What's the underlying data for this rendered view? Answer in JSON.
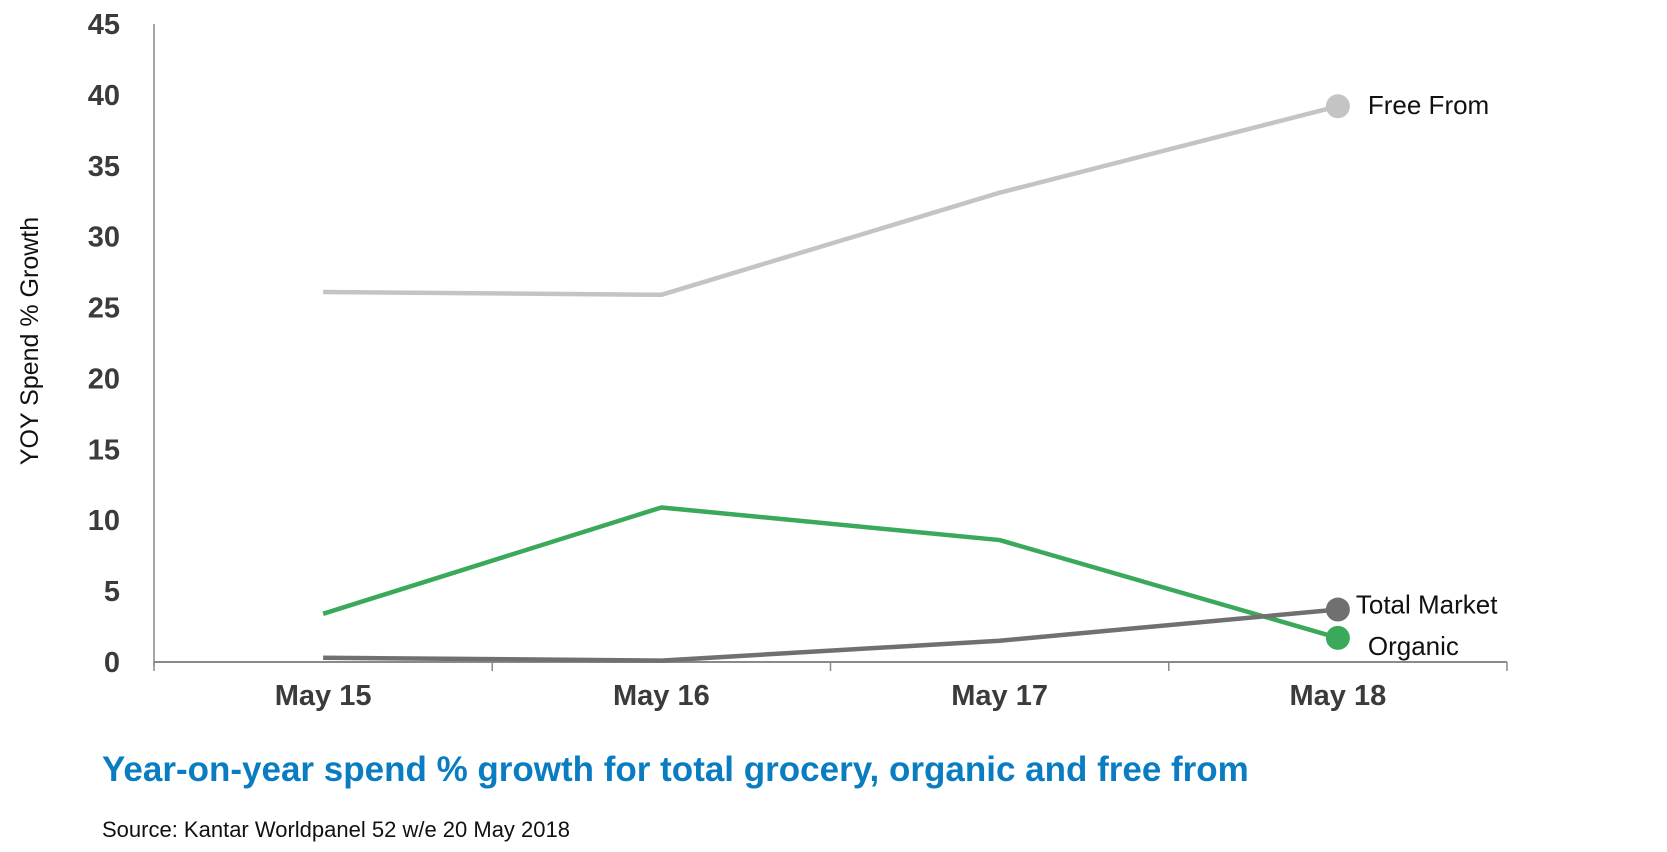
{
  "chart_data": {
    "type": "line",
    "title": "Year-on-year spend % growth for total grocery, organic and free from",
    "source": "Source: Kantar Worldpanel 52 w/e 20 May 2018",
    "xlabel": "",
    "ylabel": "YOY Spend % Growth",
    "categories": [
      "May 15",
      "May 16",
      "May 17",
      "May 18"
    ],
    "ylim": [
      0,
      45
    ],
    "yticks": [
      0,
      5,
      10,
      15,
      20,
      25,
      30,
      35,
      40,
      45
    ],
    "grid": false,
    "legend": "end-of-line labels",
    "series": [
      {
        "name": "Free From",
        "color": "#c4c4c4",
        "values": [
          26.1,
          25.9,
          33.1,
          39.2
        ]
      },
      {
        "name": "Organic",
        "color": "#3aa95a",
        "values": [
          3.4,
          10.9,
          8.6,
          1.7
        ]
      },
      {
        "name": "Total Market",
        "color": "#707070",
        "values": [
          0.3,
          0.1,
          1.5,
          3.7
        ]
      }
    ]
  }
}
